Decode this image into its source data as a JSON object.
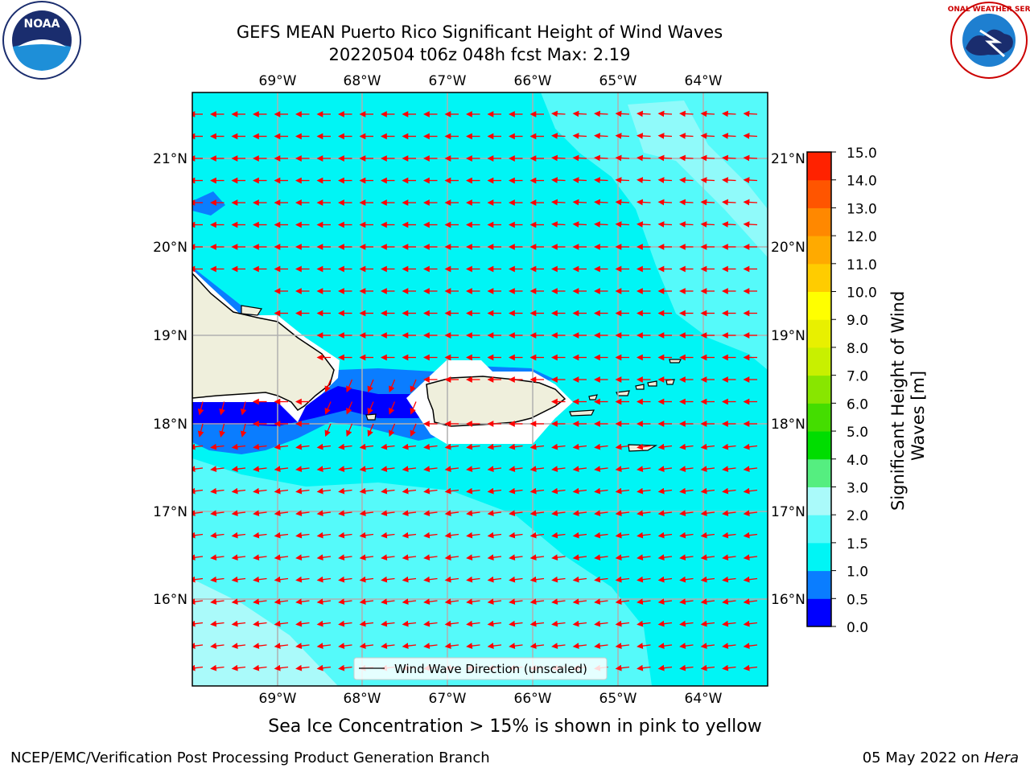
{
  "header": {
    "title_line1": "GEFS MEAN Puerto Rico Significant Height of Wind Waves",
    "title_line2": "20220504 t06z 048h fcst   Max: 2.19"
  },
  "map": {
    "lon_ticks": [
      "69°W",
      "68°W",
      "67°W",
      "66°W",
      "65°W",
      "64°W"
    ],
    "lat_ticks": [
      "21°N",
      "20°N",
      "19°N",
      "18°N",
      "17°N",
      "16°N"
    ],
    "legend_label": "Wind Wave Direction (unscaled)",
    "arrow_color": "#ff0000",
    "dominant_direction": "from east (westward-pointing arrows)"
  },
  "colorbar": {
    "label": "Significant Height of Wind Waves [m]",
    "tick_labels": [
      "0.0",
      "0.5",
      "1.0",
      "1.5",
      "2.0",
      "3.0",
      "4.0",
      "5.0",
      "6.0",
      "7.0",
      "8.0",
      "9.0",
      "10.0",
      "11.0",
      "12.0",
      "13.0",
      "14.0",
      "15.0"
    ],
    "colors": [
      "#0000ff",
      "#0a7dff",
      "#00f5f5",
      "#55fafa",
      "#aafafa",
      "#55ee80",
      "#00dd00",
      "#44dd00",
      "#88e600",
      "#c8f000",
      "#e8f000",
      "#ffff00",
      "#ffcc00",
      "#ffaa00",
      "#ff8800",
      "#ff5500",
      "#ff2200"
    ]
  },
  "logos": {
    "noaa_text": "NOAA",
    "noaa_ring": "NATIONAL OCEANIC AND ATMOSPHERIC ADMINISTRATION · U.S. DEPARTMENT OF COMMERCE",
    "nws_ring": "NATIONAL WEATHER SERVICE"
  },
  "footer": {
    "subtitle": "Sea Ice Concentration > 15% is shown in pink to yellow",
    "left": "NCEP/EMC/Verification Post Processing Product Generation Branch",
    "right_date": "05 May 2022 on ",
    "right_machine": "Hera"
  }
}
